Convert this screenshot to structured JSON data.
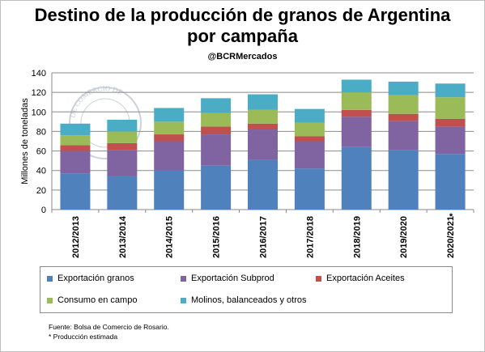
{
  "title_line1": "Destino de la producción de granos de Argentina",
  "title_line2": "por campaña",
  "handle": "@BCRMercados",
  "watermark_text": "DE COMERCIO DE",
  "chart_data": {
    "type": "bar",
    "stacked": true,
    "ylabel": "Millones de toneladas",
    "ylim": [
      0,
      140
    ],
    "yticks": [
      0,
      20,
      40,
      60,
      80,
      100,
      120,
      140
    ],
    "grid": true,
    "categories": [
      "2012/2013",
      "2013/2014",
      "2014/2015",
      "2015/2016",
      "2016/2017",
      "2017/2018",
      "2018/2019",
      "2019/2020",
      "2020/2021"
    ],
    "category_markers": [
      "",
      "",
      "",
      "",
      "",
      "",
      "",
      "",
      "*"
    ],
    "series": [
      {
        "name": "Exportación granos",
        "color": "#4f81bd",
        "values": [
          37,
          34,
          40,
          45,
          51,
          42,
          64,
          61,
          57
        ]
      },
      {
        "name": "Exportación Subprod",
        "color": "#8064a2",
        "values": [
          23,
          27,
          30,
          32,
          31,
          28,
          31,
          30,
          28
        ]
      },
      {
        "name": "Exportación Aceites",
        "color": "#c0504d",
        "values": [
          6,
          7,
          7,
          8,
          6,
          5,
          7,
          7,
          8
        ]
      },
      {
        "name": "Consumo en campo",
        "color": "#9bbb59",
        "values": [
          10,
          12,
          13,
          14,
          14,
          14,
          18,
          19,
          22
        ]
      },
      {
        "name": "Molinos, balanceados y otros",
        "color": "#4bacc6",
        "values": [
          12,
          12,
          14,
          15,
          16,
          14,
          13,
          14,
          14
        ]
      }
    ]
  },
  "footer": {
    "source": "Fuente: Bolsa de Comercio de Rosario.",
    "note": "* Producción estimada"
  }
}
